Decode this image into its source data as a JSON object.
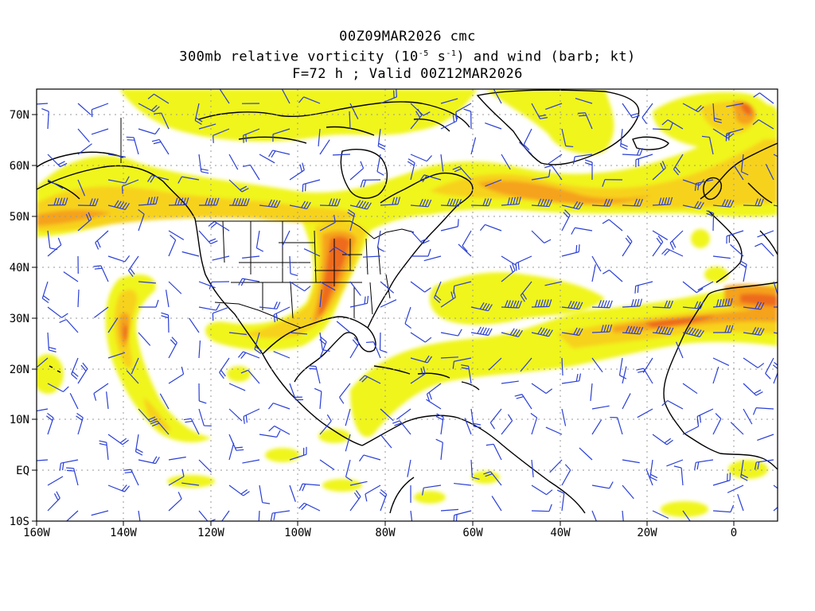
{
  "title": {
    "line1": "00Z09MAR2026 cmc",
    "line2_pre": "300mb relative vorticity (10",
    "line2_exp1": "-5",
    "line2_mid": " s",
    "line2_exp2": "-1",
    "line2_post": ") and wind (barb; kt)",
    "line3": "F=72 h ; Valid 00Z12MAR2026"
  },
  "axes": {
    "lon_labels": [
      "160W",
      "140W",
      "120W",
      "100W",
      "80W",
      "60W",
      "40W",
      "20W",
      "0"
    ],
    "lat_labels": [
      "70N",
      "60N",
      "50N",
      "40N",
      "30N",
      "20N",
      "10N",
      "EQ",
      "10S"
    ],
    "lon_range": [
      -160,
      10
    ],
    "lat_range": [
      -10,
      75
    ]
  },
  "colors": {
    "barb": "#2a3fd6",
    "shade_1": "#f0f51a",
    "shade_2": "#f7d21a",
    "shade_3": "#f5a21b",
    "shade_4": "#ee6a1c",
    "shade_5": "#e03a1c",
    "coast": "#000000",
    "grid": "#9a9a9a"
  }
}
